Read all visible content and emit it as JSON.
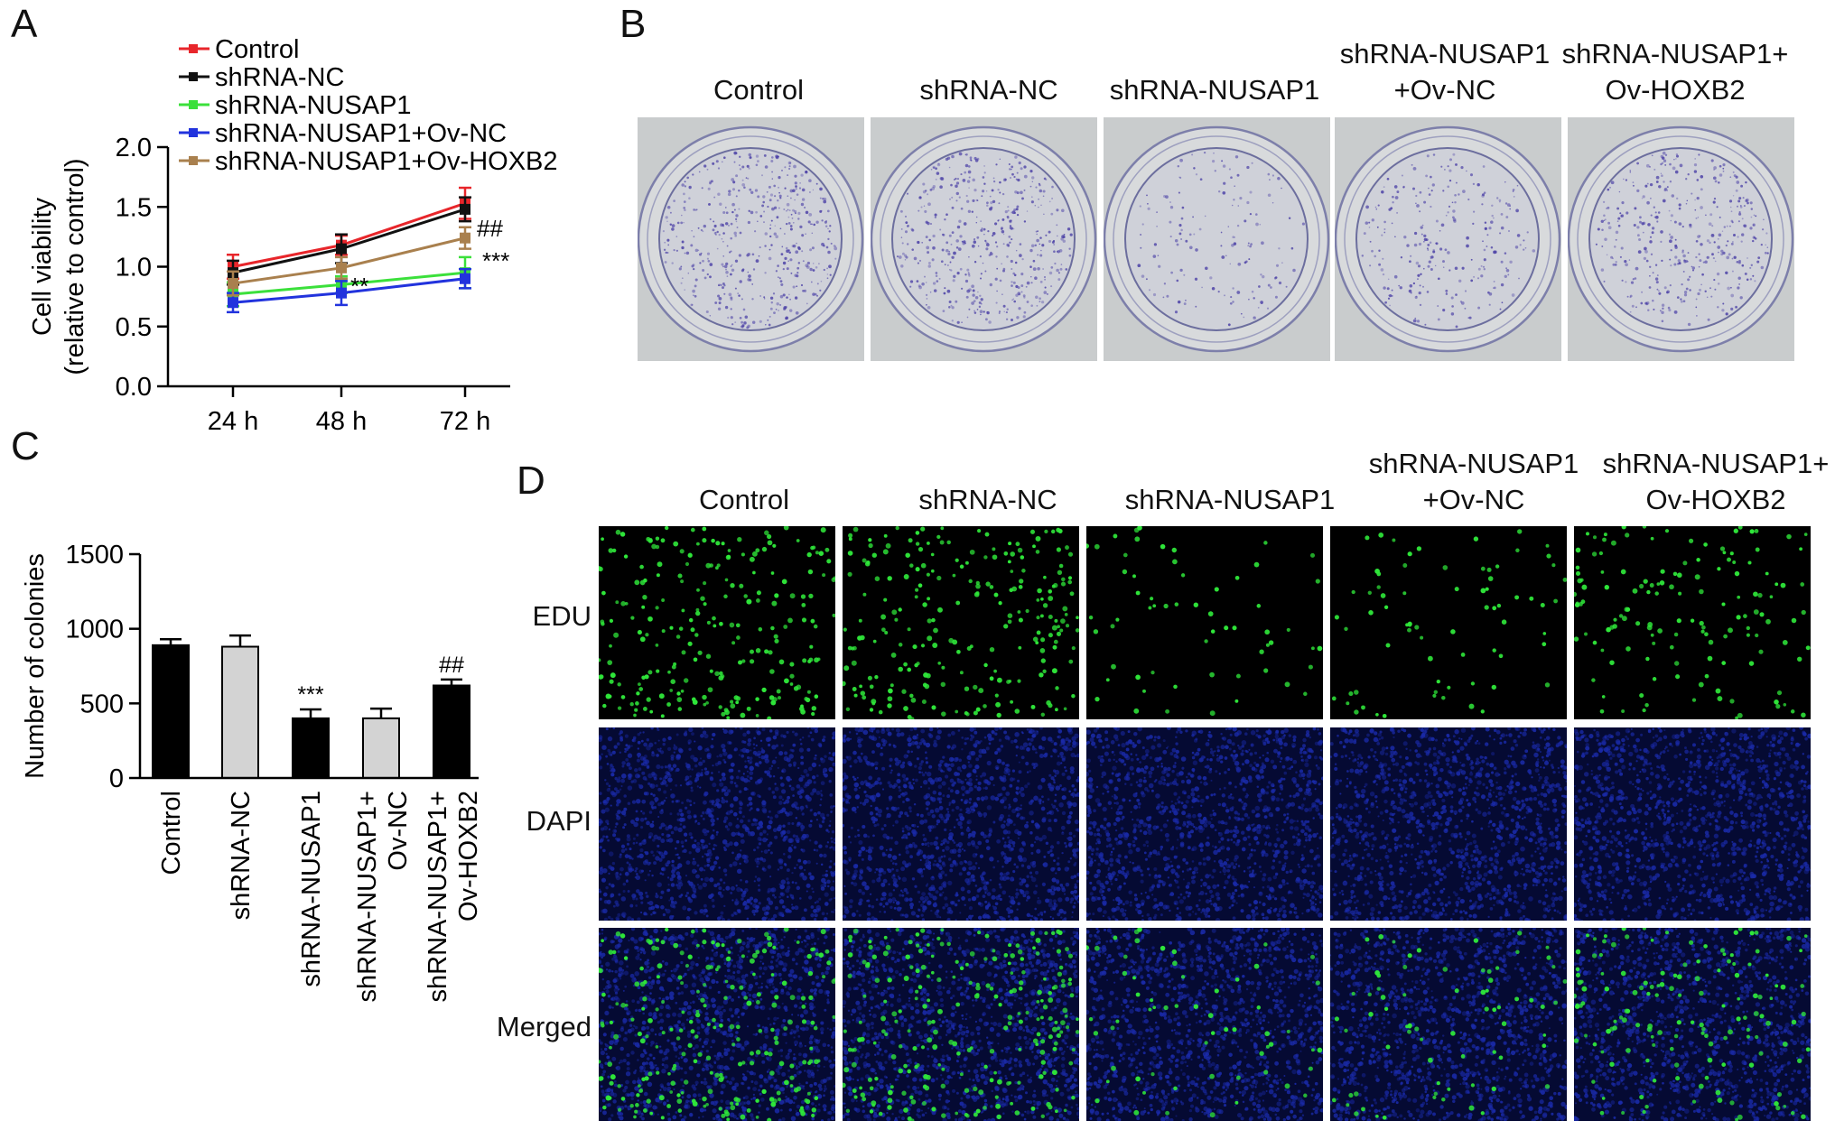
{
  "panels": {
    "a": "A",
    "b": "B",
    "c": "C",
    "d": "D"
  },
  "chart_data": [
    {
      "type": "line",
      "panel": "A",
      "x": [
        "24 h",
        "48 h",
        "72 h"
      ],
      "ylabel": [
        "Cell viability",
        "(relative to control)"
      ],
      "ylim": [
        0,
        2.0
      ],
      "yticks": [
        "0.0",
        "0.5",
        "1.0",
        "1.5",
        "2.0"
      ],
      "legend": "top-left",
      "series": [
        {
          "name": "Control",
          "color": "#e8262b",
          "values": [
            1.0,
            1.18,
            1.53
          ],
          "err": [
            0.1,
            0.08,
            0.13
          ]
        },
        {
          "name": "shRNA-NC",
          "color": "#111111",
          "values": [
            0.95,
            1.15,
            1.48
          ],
          "err": [
            0.1,
            0.12,
            0.1
          ]
        },
        {
          "name": "shRNA-NUSAP1",
          "color": "#3be03b",
          "values": [
            0.77,
            0.85,
            0.95
          ],
          "err": [
            0.1,
            0.07,
            0.13
          ]
        },
        {
          "name": "shRNA-NUSAP1+Ov-NC",
          "color": "#2233dd",
          "values": [
            0.7,
            0.78,
            0.9
          ],
          "err": [
            0.08,
            0.1,
            0.08
          ]
        },
        {
          "name": "shRNA-NUSAP1+Ov-HOXB2",
          "color": "#a9804e",
          "values": [
            0.86,
            0.99,
            1.24
          ],
          "err": [
            0.1,
            0.09,
            0.09
          ]
        }
      ],
      "annotations": {
        "sig1": "**",
        "sig2": "##",
        "sig3": "***"
      }
    },
    {
      "type": "bar",
      "panel": "C",
      "categories": [
        "Control",
        "shRNA-NC",
        "shRNA-NUSAP1",
        "shRNA-NUSAP1+|Ov-NC",
        "shRNA-NUSAP1+|Ov-HOXB2"
      ],
      "values": [
        890,
        880,
        400,
        400,
        620
      ],
      "err": [
        40,
        75,
        60,
        65,
        40
      ],
      "colors": [
        "#000000",
        "#d3d3d3",
        "#000000",
        "#d3d3d3",
        "#000000"
      ],
      "ylabel": "Number of colonies",
      "ylim": [
        0,
        1500
      ],
      "yticks": [
        "0",
        "500",
        "1000",
        "1500"
      ],
      "annotations": [
        "",
        "",
        "***",
        "",
        "##"
      ]
    }
  ],
  "colony_headers": [
    [
      "Control"
    ],
    [
      "shRNA-NC"
    ],
    [
      "shRNA-NUSAP1"
    ],
    [
      "shRNA-NUSAP1",
      "+Ov-NC"
    ],
    [
      "shRNA-NUSAP1+",
      "Ov-HOXB2"
    ]
  ],
  "colony_density": [
    0.9,
    0.9,
    0.3,
    0.5,
    0.75
  ],
  "edu_headers": [
    [
      "Control"
    ],
    [
      "shRNA-NC"
    ],
    [
      "shRNA-NUSAP1"
    ],
    [
      "shRNA-NUSAP1",
      "+Ov-NC"
    ],
    [
      "shRNA-NUSAP1+",
      "Ov-HOXB2"
    ]
  ],
  "edu_rows": [
    "EDU",
    "DAPI",
    "Merged"
  ],
  "edu_density": [
    1.0,
    1.0,
    0.25,
    0.3,
    0.6
  ],
  "colors": {
    "edu": "#2fe83a",
    "dapi": "#1a2aa8",
    "colony": "#4a3fa6"
  }
}
